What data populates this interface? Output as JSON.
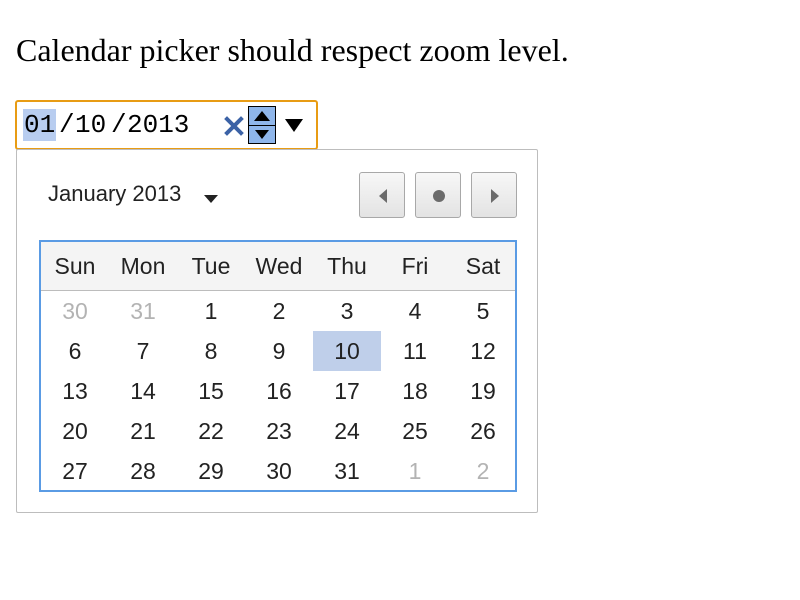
{
  "description": "Calendar picker should respect zoom level.",
  "date_input": {
    "month": "01",
    "day": "10",
    "year": "2013",
    "separator": "/"
  },
  "picker": {
    "month_label": "January 2013",
    "weekdays": [
      "Sun",
      "Mon",
      "Tue",
      "Wed",
      "Thu",
      "Fri",
      "Sat"
    ],
    "weeks": [
      [
        {
          "d": "30",
          "o": true
        },
        {
          "d": "31",
          "o": true
        },
        {
          "d": "1"
        },
        {
          "d": "2"
        },
        {
          "d": "3"
        },
        {
          "d": "4"
        },
        {
          "d": "5"
        }
      ],
      [
        {
          "d": "6"
        },
        {
          "d": "7"
        },
        {
          "d": "8"
        },
        {
          "d": "9"
        },
        {
          "d": "10",
          "s": true
        },
        {
          "d": "11"
        },
        {
          "d": "12"
        }
      ],
      [
        {
          "d": "13"
        },
        {
          "d": "14"
        },
        {
          "d": "15"
        },
        {
          "d": "16"
        },
        {
          "d": "17"
        },
        {
          "d": "18"
        },
        {
          "d": "19"
        }
      ],
      [
        {
          "d": "20"
        },
        {
          "d": "21"
        },
        {
          "d": "22"
        },
        {
          "d": "23"
        },
        {
          "d": "24"
        },
        {
          "d": "25"
        },
        {
          "d": "26"
        }
      ],
      [
        {
          "d": "27"
        },
        {
          "d": "28"
        },
        {
          "d": "29"
        },
        {
          "d": "30"
        },
        {
          "d": "31"
        },
        {
          "d": "1",
          "o": true
        },
        {
          "d": "2",
          "o": true
        }
      ]
    ]
  },
  "icons": {
    "clear": "clear-x-icon",
    "spin_up": "triangle-up-icon",
    "spin_down": "triangle-down-icon",
    "dropdown": "dropdown-arrow-icon",
    "month_menu": "caret-down-icon",
    "prev": "chevron-left-icon",
    "today": "dot-icon",
    "next": "chevron-right-icon"
  },
  "colors": {
    "focus_border": "#e89c14",
    "segment_highlight": "#b8cdf0",
    "spin_fill": "#8fb6ea",
    "clear_icon": "#3b62a6",
    "grid_border": "#5a9be4",
    "selected_day": "#bfcfea",
    "other_month_text": "#b3b3b3"
  }
}
